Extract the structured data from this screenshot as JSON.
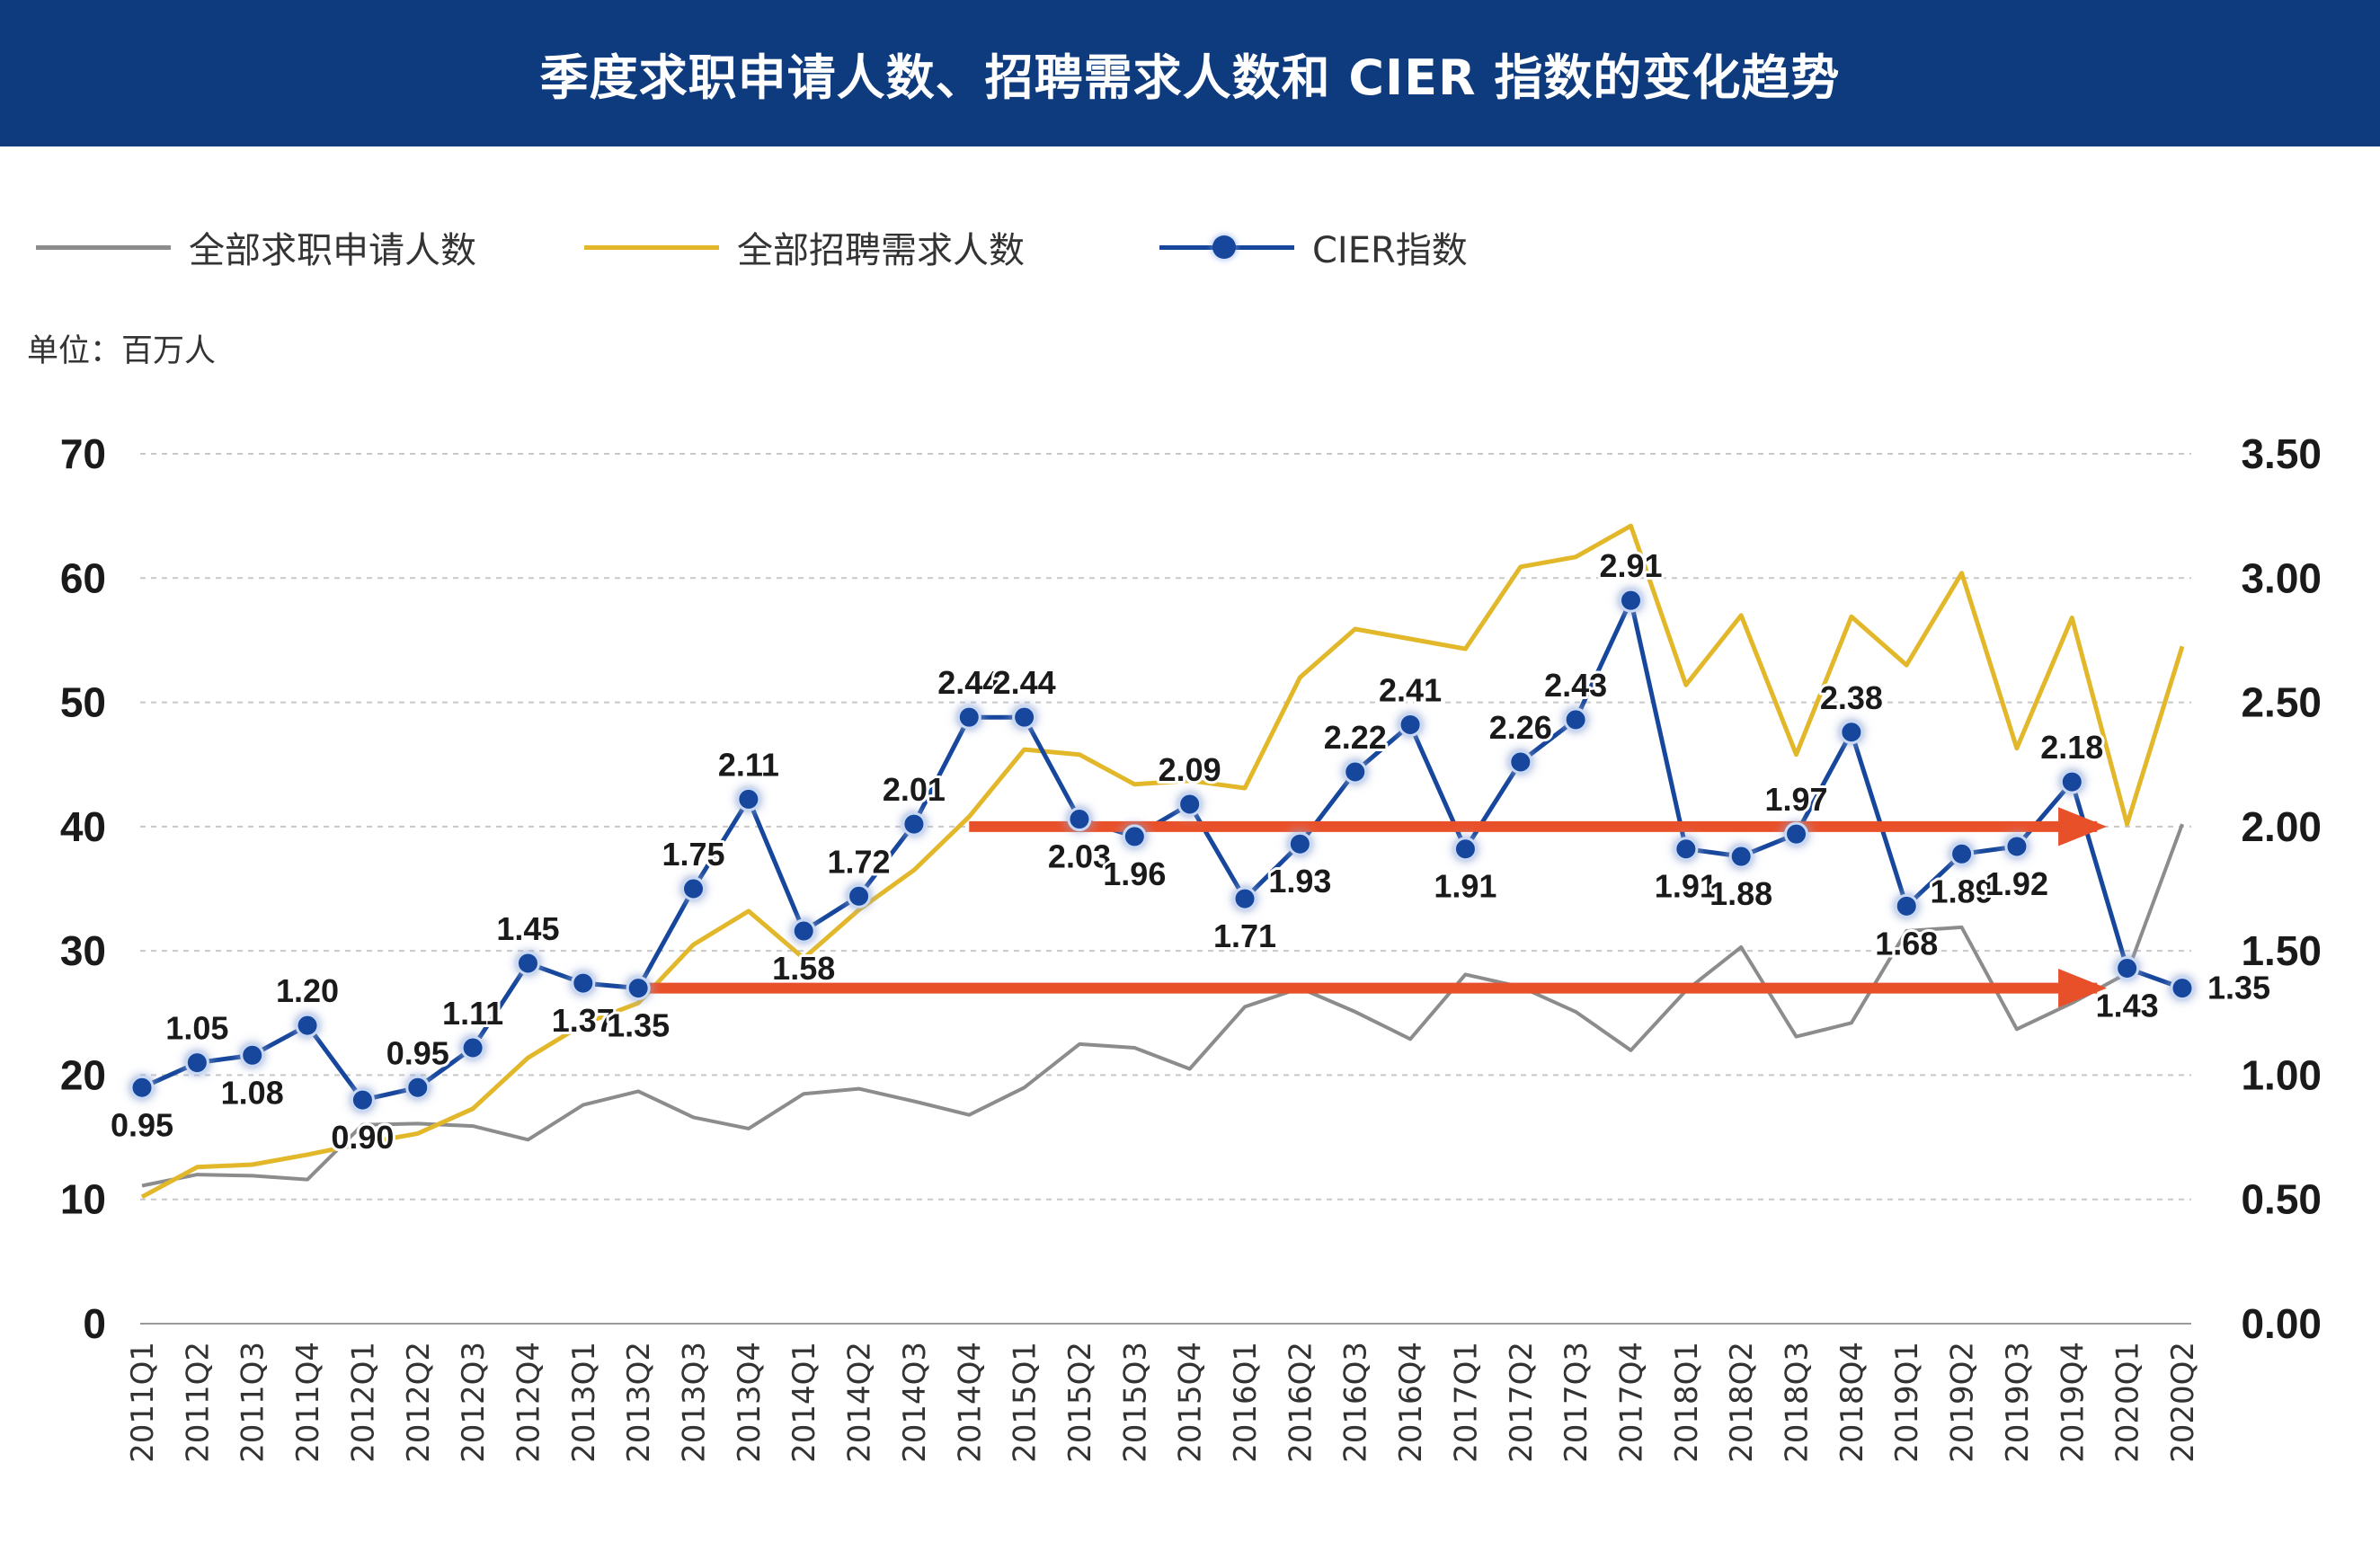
{
  "header": {
    "title": "季度求职申请人数、招聘需求人数和 CIER 指数的变化趋势"
  },
  "legend": [
    {
      "label": "全部求职申请人数",
      "color": "#8c8c8c",
      "icon": "line"
    },
    {
      "label": "全部招聘需求人数",
      "color": "#e2b82a",
      "icon": "line"
    },
    {
      "label": "CIER指数",
      "color": "#17479c",
      "icon": "line-with-dot"
    }
  ],
  "unit_label": "单位：百万人",
  "colors": {
    "header_bg": "#0e3a7e",
    "applicants": "#8c8c8c",
    "demand": "#e2b82a",
    "cier": "#17479c",
    "arrow": "#e8502a",
    "grid": "#c8c8c8"
  },
  "chart_data": {
    "type": "line",
    "title": "季度求职申请人数、招聘需求人数和 CIER 指数的变化趋势",
    "categories": [
      "2011Q1",
      "2011Q2",
      "2011Q3",
      "2011Q4",
      "2012Q1",
      "2012Q2",
      "2012Q3",
      "2012Q4",
      "2013Q1",
      "2013Q2",
      "2013Q3",
      "2013Q4",
      "2014Q1",
      "2014Q2",
      "2014Q3",
      "2014Q4",
      "2015Q1",
      "2015Q2",
      "2015Q3",
      "2015Q4",
      "2016Q1",
      "2016Q2",
      "2016Q3",
      "2016Q4",
      "2017Q1",
      "2017Q2",
      "2017Q3",
      "2017Q4",
      "2018Q1",
      "2018Q2",
      "2018Q3",
      "2018Q4",
      "2019Q1",
      "2019Q2",
      "2019Q3",
      "2019Q4",
      "2020Q1",
      "2020Q2"
    ],
    "left_axis": {
      "min": 0,
      "max": 70,
      "ticks": [
        "0",
        "10",
        "20",
        "30",
        "40",
        "50",
        "60",
        "70"
      ]
    },
    "right_axis": {
      "min": 0,
      "max": 3.5,
      "ticks": [
        "0.00",
        "0.50",
        "1.00",
        "1.50",
        "2.00",
        "2.50",
        "3.00",
        "3.50"
      ]
    },
    "grid": true,
    "legend_position": "top-left",
    "series": [
      {
        "name": "全部求职申请人数",
        "axis": "left",
        "values": [
          11.1,
          12.0,
          11.9,
          11.6,
          16.0,
          16.1,
          15.9,
          14.8,
          17.6,
          18.7,
          16.6,
          15.7,
          18.5,
          18.9,
          17.9,
          16.8,
          19.0,
          22.5,
          22.2,
          20.5,
          25.5,
          27.0,
          25.1,
          22.9,
          28.1,
          27.1,
          25.1,
          22.0,
          26.8,
          30.3,
          23.1,
          24.2,
          31.6,
          31.9,
          23.7,
          25.8,
          28.2,
          40.2
        ]
      },
      {
        "name": "全部招聘需求人数",
        "axis": "left",
        "values": [
          10.2,
          12.6,
          12.8,
          13.6,
          14.5,
          15.3,
          17.3,
          21.4,
          24.1,
          25.8,
          30.5,
          33.2,
          29.4,
          33.3,
          36.5,
          40.8,
          46.2,
          45.8,
          43.4,
          43.7,
          43.1,
          52.0,
          55.9,
          55.1,
          54.3,
          60.9,
          61.7,
          64.2,
          51.4,
          57.0,
          45.8,
          56.9,
          53.0,
          60.4,
          46.3,
          56.8,
          40.2,
          54.5
        ]
      },
      {
        "name": "CIER指数",
        "axis": "right",
        "values": [
          0.95,
          1.05,
          1.08,
          1.2,
          0.9,
          0.95,
          1.11,
          1.45,
          1.37,
          1.35,
          1.75,
          2.11,
          1.58,
          1.72,
          2.01,
          2.44,
          2.44,
          2.03,
          1.96,
          2.09,
          1.71,
          1.93,
          2.22,
          2.41,
          1.91,
          2.26,
          2.43,
          2.91,
          1.91,
          1.88,
          1.97,
          2.38,
          1.68,
          1.89,
          1.92,
          2.18,
          1.43,
          1.35
        ]
      }
    ],
    "data_labels": [
      "0.95",
      "1.05",
      "1.08",
      "1.20",
      "0.90",
      "0.95",
      "1.11",
      "1.45",
      "1.37",
      "1.35",
      "1.75",
      "2.11",
      "1.58",
      "1.72",
      "2.01",
      "2.44",
      "2.44",
      "2.03",
      "1.96",
      "2.09",
      "1.71",
      "1.93",
      "2.22",
      "2.41",
      "1.91",
      "2.26",
      "2.43",
      "2.91",
      "1.91",
      "1.88",
      "1.97",
      "2.38",
      "1.68",
      "1.89",
      "1.92",
      "2.18",
      "1.43",
      "1.35"
    ],
    "annotations": [
      {
        "type": "arrow",
        "from_category": "2013Q2",
        "to_category": "2019Q4",
        "y_right": 1.35
      },
      {
        "type": "arrow",
        "from_category": "2014Q4",
        "to_category": "2019Q4",
        "y_right": 2.0
      }
    ]
  }
}
